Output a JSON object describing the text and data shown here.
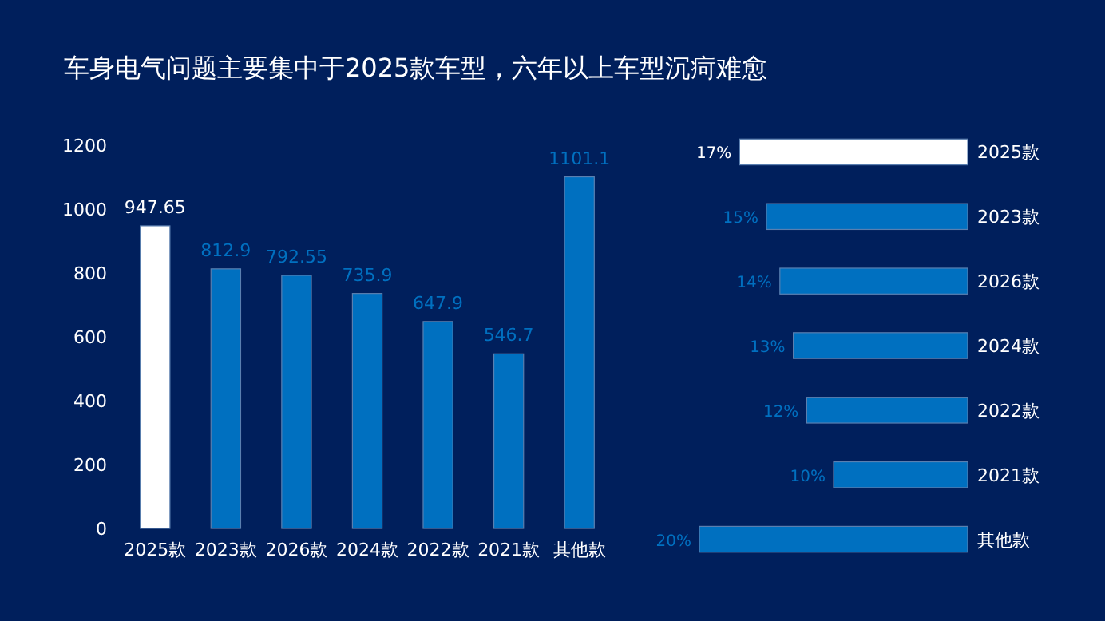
{
  "chart_data": [
    {
      "type": "bar",
      "title": "车身电气问题主要集中于2025款车型，六年以上车型沉疴难愈",
      "categories": [
        "2025款",
        "2023款",
        "2026款",
        "2024款",
        "2022款",
        "2021款",
        "其他款"
      ],
      "values": [
        947.65,
        812.9,
        792.55,
        735.9,
        647.9,
        546.7,
        1101.1
      ],
      "colors": [
        "#ffffff",
        "#0070c0",
        "#0070c0",
        "#0070c0",
        "#0070c0",
        "#0070c0",
        "#0070c0"
      ],
      "ylim": [
        0,
        1200
      ],
      "yticks": [
        0,
        200,
        400,
        600,
        800,
        1000,
        1200
      ],
      "data_labels": true,
      "grid": false
    },
    {
      "type": "bar",
      "orientation": "horizontal",
      "categories": [
        "2025款",
        "2023款",
        "2026款",
        "2024款",
        "2022款",
        "2021款",
        "其他款"
      ],
      "values": [
        17,
        15,
        14,
        13,
        12,
        10,
        20
      ],
      "value_labels": [
        "17%",
        "15%",
        "14%",
        "13%",
        "12%",
        "10%",
        "20%"
      ],
      "colors": [
        "#ffffff",
        "#0070c0",
        "#0070c0",
        "#0070c0",
        "#0070c0",
        "#0070c0",
        "#0070c0"
      ],
      "xlim": [
        20,
        0
      ],
      "tick_labels": "y",
      "grid": false
    }
  ]
}
